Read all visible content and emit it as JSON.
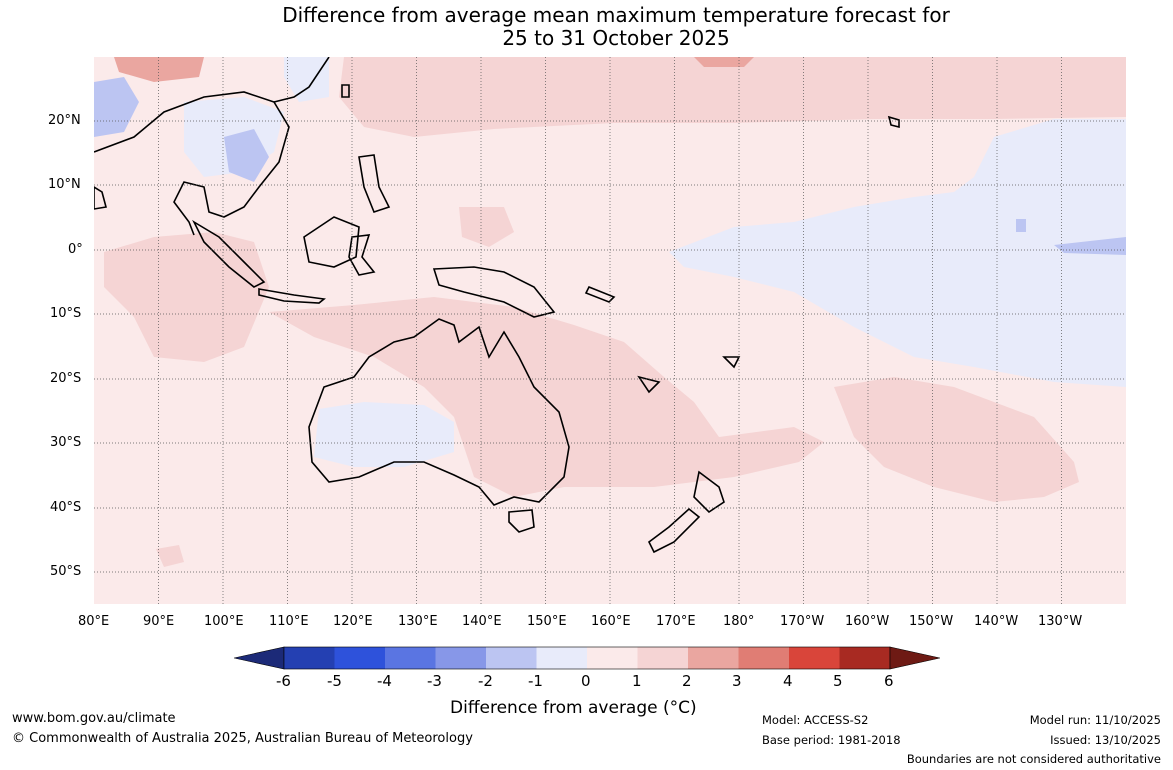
{
  "title": {
    "line1": "Difference from average mean maximum temperature forecast for",
    "line2": "25 to 31 October 2025"
  },
  "map": {
    "lat_ticks": [
      "20°N",
      "10°N",
      "0°",
      "10°S",
      "20°S",
      "30°S",
      "40°S",
      "50°S"
    ],
    "lon_ticks": [
      "80°E",
      "90°E",
      "100°E",
      "110°E",
      "120°E",
      "130°E",
      "140°E",
      "150°E",
      "160°E",
      "170°E",
      "180°",
      "170°W",
      "160°W",
      "150°W",
      "140°W",
      "130°W"
    ],
    "dominant_anomaly": "0 to 1",
    "colors": {
      "land_outline": "#000000",
      "gridline": "#555555"
    }
  },
  "colorbar": {
    "title": "Difference from average (°C)",
    "tick_labels": [
      "-6",
      "-5",
      "-4",
      "-3",
      "-2",
      "-1",
      "0",
      "1",
      "2",
      "3",
      "4",
      "5",
      "6"
    ],
    "colors": [
      "#1c2a78",
      "#2440b2",
      "#2e52db",
      "#5a75e2",
      "#8797e8",
      "#bcc5f2",
      "#e8ebfa",
      "#fbeaea",
      "#f5d4d4",
      "#eaa6a0",
      "#e07d74",
      "#d9453a",
      "#a82a22",
      "#6e1a14"
    ]
  },
  "footer": {
    "website": "www.bom.gov.au/climate",
    "copyright": "© Commonwealth of Australia 2025, Australian Bureau of Meteorology",
    "model": "Model: ACCESS-S2",
    "base_period": "Base period: 1981-2018",
    "model_run": "Model run: 11/10/2025",
    "issued": "Issued: 13/10/2025",
    "disclaimer": "Boundaries are not considered authoritative"
  }
}
